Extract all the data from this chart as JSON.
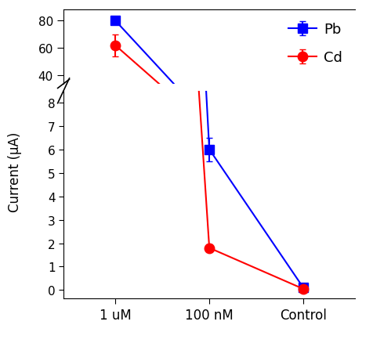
{
  "x_labels": [
    "1 uM",
    "100 nM",
    "Control"
  ],
  "x_positions": [
    0,
    1,
    2
  ],
  "pb_values": [
    80,
    6,
    0.1
  ],
  "pb_errors": [
    2.5,
    0.5,
    0.05
  ],
  "cd_values": [
    62,
    1.8,
    0.05
  ],
  "cd_errors": [
    8,
    0.15,
    0.05
  ],
  "pb_color": "#0000FF",
  "cd_color": "#FF0000",
  "ylabel": "Current (μA)",
  "upper_ylim": [
    34,
    88
  ],
  "upper_yticks": [
    40,
    60,
    80
  ],
  "lower_ylim": [
    -0.35,
    8.5
  ],
  "lower_yticks": [
    0,
    1,
    2,
    3,
    4,
    5,
    6,
    7,
    8
  ],
  "legend_pb": "Pb",
  "legend_cd": "Cd",
  "marker_pb": "s",
  "marker_cd": "o",
  "markersize": 9,
  "linewidth": 1.5,
  "background_color": "#FFFFFF"
}
